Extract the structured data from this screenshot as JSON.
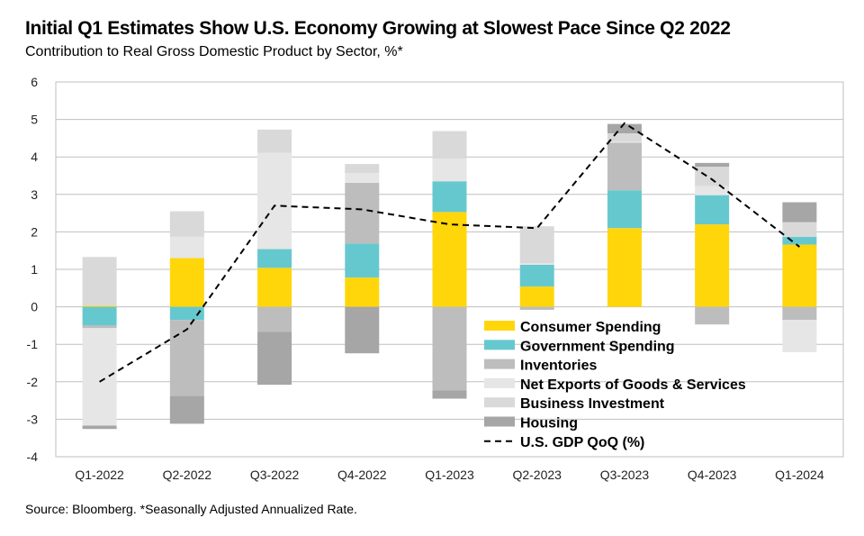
{
  "chart_data": {
    "type": "bar",
    "stacked": true,
    "title": "Initial Q1 Estimates Show U.S. Economy Growing at Slowest Pace Since Q2 2022",
    "subtitle": "Contribution to Real Gross Domestic Product by Sector, %*",
    "source": "Source: Bloomberg. *Seasonally Adjusted Annualized Rate.",
    "categories": [
      "Q1-2022",
      "Q2-2022",
      "Q3-2022",
      "Q4-2022",
      "Q1-2023",
      "Q2-2023",
      "Q3-2023",
      "Q4-2023",
      "Q1-2024"
    ],
    "ylim": [
      -4,
      6
    ],
    "yticks": [
      "-4",
      "-3",
      "-2",
      "-1",
      "0",
      "1",
      "2",
      "3",
      "4",
      "5",
      "6"
    ],
    "grid": true,
    "legend_position": "bottom-center",
    "series": [
      {
        "name": "Consumer Spending",
        "color": "#FFD60A",
        "values": [
          0.03,
          1.3,
          1.04,
          0.78,
          2.53,
          0.54,
          2.1,
          2.2,
          1.66
        ]
      },
      {
        "name": "Government Spending",
        "color": "#66C8CF",
        "values": [
          -0.5,
          -0.35,
          0.5,
          0.91,
          0.82,
          0.58,
          1.01,
          0.78,
          0.21
        ]
      },
      {
        "name": "Inventories",
        "color": "#BDBDBD",
        "values": [
          -0.07,
          -2.03,
          -0.67,
          1.62,
          -2.23,
          -0.08,
          1.27,
          -0.47,
          -0.35
        ]
      },
      {
        "name": "Net Exports of Goods & Services",
        "color": "#E6E6E6",
        "values": [
          -2.6,
          0.57,
          2.57,
          0.26,
          0.6,
          0.04,
          0.03,
          0.24,
          -0.86
        ]
      },
      {
        "name": "Business Investment",
        "color": "#D9D9D9",
        "values": [
          1.3,
          0.68,
          0.62,
          0.24,
          0.74,
          0.99,
          0.22,
          0.52,
          0.39
        ]
      },
      {
        "name": "Housing",
        "color": "#A6A6A6",
        "values": [
          -0.09,
          -0.74,
          -1.41,
          -1.24,
          -0.22,
          0.0,
          0.25,
          0.1,
          0.53
        ]
      }
    ],
    "line": {
      "name": "U.S. GDP QoQ (%)",
      "color": "#000000",
      "style": "dashed",
      "values": [
        -2.0,
        -0.6,
        2.7,
        2.6,
        2.2,
        2.1,
        4.9,
        3.4,
        1.6
      ]
    }
  }
}
